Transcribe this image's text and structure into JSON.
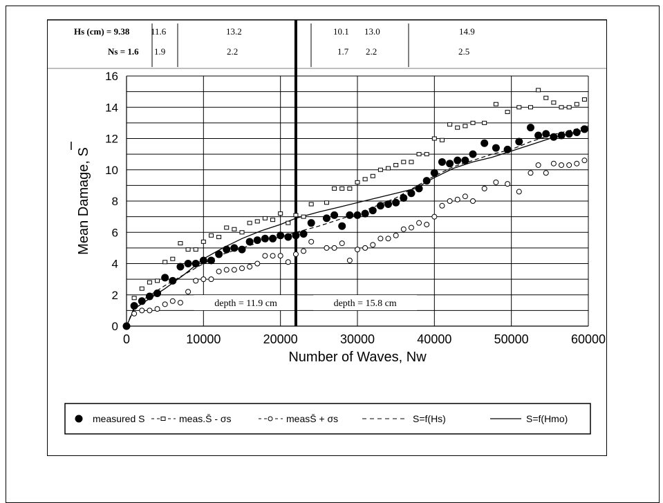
{
  "chart_data": {
    "type": "scatter",
    "xlabel": "Number of Waves, Nw",
    "ylabel": "Mean Damage, S",
    "xlim": [
      0,
      60000
    ],
    "ylim": [
      0,
      16
    ],
    "x_ticks": [
      "0",
      "10000",
      "20000",
      "30000",
      "40000",
      "50000",
      "60000"
    ],
    "y_ticks": [
      "0",
      "2",
      "4",
      "6",
      "8",
      "10",
      "12",
      "14",
      "16"
    ],
    "grid": true,
    "legend_position": "bottom",
    "divider_x": 22000,
    "top_table": {
      "hs_label": "Hs (cm) = 9.38",
      "ns_label": "Ns = 1.6",
      "segments": [
        {
          "hs": "11.6",
          "ns": "1.9"
        },
        {
          "hs": "13.2",
          "ns": "2.2"
        },
        {
          "hs": "10.1",
          "ns": "1.7"
        },
        {
          "hs": "13.0",
          "ns": "2.2"
        },
        {
          "hs": "14.9",
          "ns": "2.5"
        }
      ]
    },
    "annotations": [
      {
        "text": "depth = 11.9 cm",
        "x": 15500,
        "y": 1.5
      },
      {
        "text": "depth = 15.8 cm",
        "x": 31000,
        "y": 1.5
      }
    ],
    "series": [
      {
        "name": "measured S",
        "marker": "filled-circle",
        "color": "#000000",
        "x": [
          0,
          1000,
          2000,
          3000,
          4000,
          5000,
          6000,
          7000,
          8000,
          9000,
          10000,
          11000,
          12000,
          13000,
          14000,
          15000,
          16000,
          17000,
          18000,
          19000,
          20000,
          21000,
          22000,
          23000,
          24000,
          26000,
          27000,
          28000,
          29000,
          30000,
          31000,
          32000,
          33000,
          34000,
          35000,
          36000,
          37000,
          38000,
          39000,
          40000,
          41000,
          42000,
          43000,
          44000,
          45000,
          46500,
          48000,
          49500,
          51000,
          52500,
          53500,
          54500,
          55500,
          56500,
          57500,
          58500,
          59500
        ],
        "y": [
          0,
          1.3,
          1.6,
          1.9,
          2.1,
          3.1,
          2.9,
          3.8,
          4.0,
          4.0,
          4.2,
          4.2,
          4.6,
          4.9,
          5.0,
          4.9,
          5.4,
          5.5,
          5.6,
          5.6,
          5.8,
          5.7,
          5.8,
          5.9,
          6.6,
          6.9,
          7.1,
          6.4,
          7.1,
          7.1,
          7.2,
          7.4,
          7.7,
          7.8,
          7.9,
          8.2,
          8.5,
          8.8,
          9.3,
          9.8,
          10.5,
          10.4,
          10.6,
          10.6,
          11.0,
          11.7,
          11.4,
          11.3,
          11.8,
          12.7,
          12.2,
          12.3,
          12.1,
          12.2,
          12.3,
          12.4,
          12.6
        ]
      },
      {
        "name": "meas.S̄ - σs",
        "marker": "small-square",
        "color": "#000000",
        "x": [
          1000,
          2000,
          3000,
          4000,
          5000,
          6000,
          7000,
          8000,
          9000,
          10000,
          11000,
          12000,
          13000,
          14000,
          15000,
          16000,
          17000,
          18000,
          19000,
          20000,
          21000,
          22000,
          23000,
          24000,
          26000,
          27000,
          28000,
          29000,
          30000,
          31000,
          32000,
          33000,
          34000,
          35000,
          36000,
          37000,
          38000,
          39000,
          40000,
          41000,
          42000,
          43000,
          44000,
          45000,
          46500,
          48000,
          49500,
          51000,
          52500,
          53500,
          54500,
          55500,
          56500,
          57500,
          58500,
          59500
        ],
        "y": [
          1.8,
          2.4,
          2.8,
          2.9,
          4.1,
          4.3,
          5.3,
          4.9,
          4.9,
          5.4,
          5.8,
          5.7,
          6.3,
          6.2,
          6.0,
          6.6,
          6.7,
          6.9,
          6.8,
          7.2,
          6.6,
          7.1,
          7.0,
          7.8,
          7.9,
          8.8,
          8.8,
          8.8,
          9.2,
          9.4,
          9.6,
          10.0,
          10.1,
          10.3,
          10.5,
          10.5,
          11.0,
          11.0,
          12.0,
          11.9,
          12.9,
          12.7,
          12.8,
          13.0,
          13.0,
          14.2,
          13.7,
          14.0,
          14.0,
          15.1,
          14.6,
          14.3,
          14.0,
          14.0,
          14.2,
          14.5
        ]
      },
      {
        "name": "measS̄ + σs",
        "marker": "open-circle",
        "color": "#000000",
        "x": [
          1000,
          2000,
          3000,
          4000,
          5000,
          6000,
          7000,
          8000,
          9000,
          10000,
          11000,
          12000,
          13000,
          14000,
          15000,
          16000,
          17000,
          18000,
          19000,
          20000,
          21000,
          22000,
          23000,
          24000,
          26000,
          27000,
          28000,
          29000,
          30000,
          31000,
          32000,
          33000,
          34000,
          35000,
          36000,
          37000,
          38000,
          39000,
          40000,
          41000,
          42000,
          43000,
          44000,
          45000,
          46500,
          48000,
          49500,
          51000,
          52500,
          53500,
          54500,
          55500,
          56500,
          57500,
          58500,
          59500
        ],
        "y": [
          0.8,
          1.0,
          1.0,
          1.1,
          1.4,
          1.6,
          1.5,
          2.2,
          2.9,
          3.0,
          3.0,
          3.5,
          3.6,
          3.6,
          3.7,
          3.8,
          4.0,
          4.5,
          4.5,
          4.5,
          4.1,
          4.6,
          4.8,
          5.4,
          5.0,
          5.0,
          5.3,
          4.2,
          4.9,
          5.0,
          5.2,
          5.6,
          5.6,
          5.8,
          6.2,
          6.3,
          6.6,
          6.5,
          7.0,
          7.7,
          8.0,
          8.1,
          8.3,
          8.0,
          8.8,
          9.2,
          9.1,
          8.6,
          9.8,
          10.3,
          9.8,
          10.4,
          10.3,
          10.3,
          10.4,
          10.6
        ]
      },
      {
        "name": "S=f(Hs)",
        "line_style": "dashed",
        "color": "#000000",
        "x": [
          0,
          1000,
          2500,
          5000,
          7500,
          10000,
          12500,
          15000,
          17500,
          20000,
          22000,
          25000,
          27500,
          30000,
          32500,
          35000,
          37500,
          40000,
          42500,
          45000,
          47500,
          50000,
          52500,
          55000,
          57500,
          60000
        ],
        "y": [
          0,
          1.2,
          1.8,
          2.6,
          3.3,
          4.0,
          4.6,
          5.0,
          5.4,
          5.7,
          6.0,
          6.4,
          6.8,
          7.2,
          7.7,
          8.2,
          8.9,
          9.6,
          10.2,
          10.6,
          11.0,
          11.3,
          11.8,
          12.2,
          12.5,
          12.8
        ]
      },
      {
        "name": "S=f(Hmo)",
        "line_style": "solid",
        "color": "#000000",
        "x": [
          0,
          1000,
          2500,
          5000,
          7500,
          10000,
          12500,
          15000,
          17500,
          20000,
          22000,
          25000,
          27500,
          30000,
          32500,
          35000,
          37500,
          40000,
          42500,
          45000,
          47500,
          50000,
          52500,
          55000,
          57500,
          60000
        ],
        "y": [
          0,
          1.1,
          1.6,
          2.4,
          3.3,
          4.3,
          5.0,
          5.6,
          6.1,
          6.5,
          6.9,
          7.3,
          7.6,
          7.9,
          8.2,
          8.5,
          8.8,
          9.5,
          10.1,
          10.5,
          10.8,
          11.2,
          11.6,
          12.0,
          12.3,
          12.6
        ]
      }
    ]
  }
}
